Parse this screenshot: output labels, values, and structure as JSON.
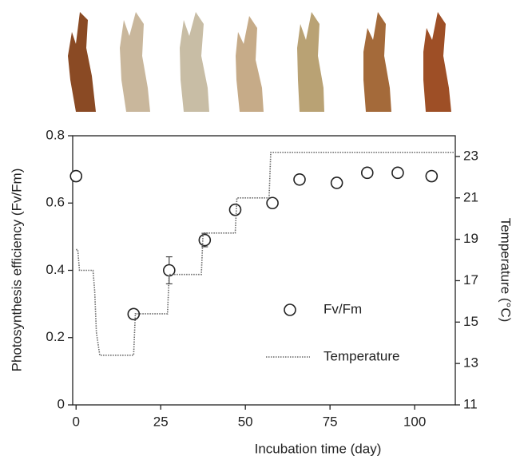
{
  "chart_data": {
    "type": "line",
    "x_label": "Incubation time (day)",
    "y_label": "Photosynthesis efficiency (Fv/Fm)",
    "y2_label": "Temperature (°C)",
    "xlim": [
      -1,
      112
    ],
    "xticks": [
      0,
      25,
      50,
      75,
      100
    ],
    "ylim": [
      0,
      0.8
    ],
    "yticks": [
      0,
      0.2,
      0.4,
      0.6,
      0.8
    ],
    "y2lim": [
      11,
      24
    ],
    "y2ticks": [
      11,
      13,
      15,
      17,
      19,
      21,
      23
    ],
    "series": [
      {
        "name": "Fv/Fm",
        "color": "#222222",
        "marker": "circle",
        "x": [
          0,
          17,
          27.5,
          38,
          47,
          58,
          66,
          77,
          86,
          95,
          105
        ],
        "values": [
          0.68,
          0.27,
          0.4,
          0.49,
          0.58,
          0.6,
          0.67,
          0.66,
          0.69,
          0.69,
          0.68
        ],
        "errors": [
          0,
          0.01,
          0.04,
          0.02,
          0.01,
          0.01,
          0,
          0,
          0,
          0,
          0
        ]
      },
      {
        "name": "Temperature",
        "color": "#666666",
        "axis": "y2",
        "x": [
          0,
          0.5,
          1,
          5,
          5.5,
          6,
          7,
          17,
          17.5,
          27,
          27.5,
          37,
          37.5,
          47,
          47.5,
          57,
          57.5,
          112
        ],
        "values": [
          18.5,
          18.5,
          17.5,
          17.5,
          16.5,
          14.5,
          13.4,
          13.4,
          15.4,
          15.4,
          17.3,
          17.3,
          19.3,
          19.3,
          21,
          21,
          23.2,
          23.2
        ]
      }
    ],
    "legend": "lower-right"
  }
}
